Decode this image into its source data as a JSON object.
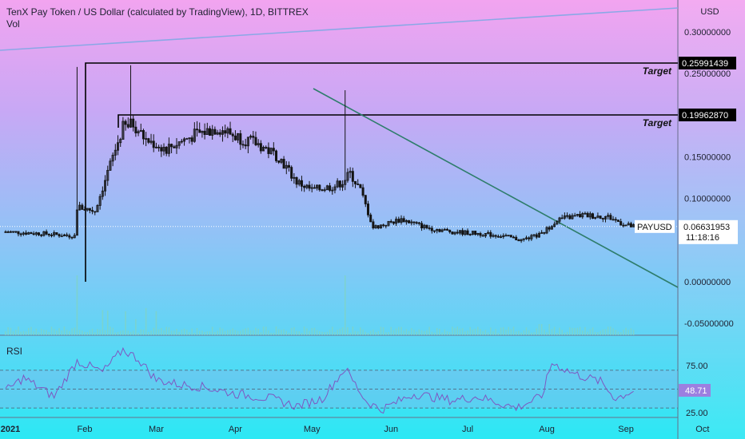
{
  "header": {
    "title": "TenX Pay Token / US Dollar (calculated by TradingView), 1D, BITTREX",
    "vol_label": "Vol"
  },
  "rsi_label": "RSI",
  "colors": {
    "bg_top": "#f0a2f0",
    "bg_bottom": "#2ee6f5",
    "candle": "#141414",
    "trendline": "#2e7d6b",
    "target_line": "#000000",
    "resistance_line": "#8aa8e6"
  },
  "chart_data": [
    {
      "type": "candlestick",
      "title": "TenX Pay Token / US Dollar (calculated by TradingView), 1D, BITTREX",
      "currency": "USD",
      "symbol": "PAYUSD",
      "last_price": "0.06631953",
      "countdown": "11:18:16",
      "xlabel": "",
      "ylabel": "",
      "x_ticks": [
        "2021",
        "Feb",
        "Mar",
        "Apr",
        "May",
        "Jun",
        "Jul",
        "Aug",
        "Sep",
        "Oct"
      ],
      "y_ticks": [
        "0.30000000",
        "0.25000000",
        "0.15000000",
        "0.10000000",
        "0.00000000",
        "-0.05000000"
      ],
      "ylim": [
        -0.055,
        0.33
      ],
      "levels": [
        {
          "label": "Target",
          "value": "0.25991439"
        },
        {
          "label": "Target",
          "value": "0.19962870"
        }
      ],
      "trendline": {
        "from": [
          "2021-05-14",
          0.23
        ],
        "to": [
          "2021-10-30",
          -0.005
        ]
      },
      "resistance_line": {
        "from": [
          "2021-01-01",
          0.285
        ],
        "to": [
          "2021-10-30",
          0.325
        ]
      },
      "price_path": [
        [
          "2021-01-01",
          0.06
        ],
        [
          "2021-01-15",
          0.058
        ],
        [
          "2021-01-28",
          0.055
        ],
        [
          "2021-01-29",
          0.09
        ],
        [
          "2021-02-05",
          0.085
        ],
        [
          "2021-02-12",
          0.15
        ],
        [
          "2021-02-16",
          0.185
        ],
        [
          "2021-02-20",
          0.19
        ],
        [
          "2021-02-25",
          0.17
        ],
        [
          "2021-03-05",
          0.16
        ],
        [
          "2021-03-15",
          0.175
        ],
        [
          "2021-03-25",
          0.185
        ],
        [
          "2021-04-01",
          0.175
        ],
        [
          "2021-04-10",
          0.165
        ],
        [
          "2021-04-18",
          0.15
        ],
        [
          "2021-04-25",
          0.12
        ],
        [
          "2021-05-01",
          0.11
        ],
        [
          "2021-05-10",
          0.115
        ],
        [
          "2021-05-13",
          0.12
        ],
        [
          "2021-05-16",
          0.13
        ],
        [
          "2021-05-20",
          0.11
        ],
        [
          "2021-05-25",
          0.065
        ],
        [
          "2021-06-05",
          0.075
        ],
        [
          "2021-06-15",
          0.065
        ],
        [
          "2021-06-25",
          0.06
        ],
        [
          "2021-07-05",
          0.058
        ],
        [
          "2021-07-15",
          0.055
        ],
        [
          "2021-07-22",
          0.05
        ],
        [
          "2021-07-30",
          0.057
        ],
        [
          "2021-08-05",
          0.075
        ],
        [
          "2021-08-15",
          0.08
        ],
        [
          "2021-08-25",
          0.078
        ],
        [
          "2021-09-01",
          0.068
        ],
        [
          "2021-09-04",
          0.066
        ]
      ]
    },
    {
      "type": "line",
      "title": "RSI",
      "current_value": "48.71",
      "y_ticks": [
        "75.00",
        "25.00"
      ],
      "ylim": [
        15,
        95
      ],
      "bands": [
        30,
        50,
        70
      ],
      "rsi_path": [
        [
          "2021-01-01",
          48
        ],
        [
          "2021-01-08",
          62
        ],
        [
          "2021-01-20",
          42
        ],
        [
          "2021-01-29",
          80
        ],
        [
          "2021-02-08",
          68
        ],
        [
          "2021-02-16",
          92
        ],
        [
          "2021-02-22",
          82
        ],
        [
          "2021-03-01",
          60
        ],
        [
          "2021-03-10",
          55
        ],
        [
          "2021-03-20",
          52
        ],
        [
          "2021-04-01",
          45
        ],
        [
          "2021-04-15",
          40
        ],
        [
          "2021-04-25",
          32
        ],
        [
          "2021-05-05",
          40
        ],
        [
          "2021-05-14",
          72
        ],
        [
          "2021-05-22",
          38
        ],
        [
          "2021-05-28",
          28
        ],
        [
          "2021-06-10",
          45
        ],
        [
          "2021-06-25",
          38
        ],
        [
          "2021-07-05",
          42
        ],
        [
          "2021-07-20",
          30
        ],
        [
          "2021-07-30",
          42
        ],
        [
          "2021-08-03",
          78
        ],
        [
          "2021-08-12",
          66
        ],
        [
          "2021-08-22",
          58
        ],
        [
          "2021-08-28",
          40
        ],
        [
          "2021-09-04",
          48.71
        ]
      ]
    }
  ]
}
